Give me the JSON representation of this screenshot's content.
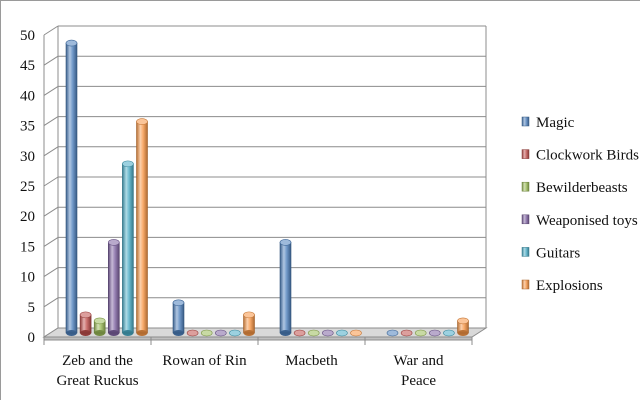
{
  "chart_data": {
    "type": "bar",
    "style": "3d-cylinder",
    "title": "",
    "xlabel": "",
    "ylabel": "",
    "ylim": [
      0,
      50
    ],
    "yticks": [
      0,
      5,
      10,
      15,
      20,
      25,
      30,
      35,
      40,
      45,
      50
    ],
    "grid": true,
    "legend_position": "right",
    "categories": [
      [
        "Zeb and the",
        "Great Ruckus"
      ],
      [
        "Rowan of Rin"
      ],
      [
        "Macbeth"
      ],
      [
        "War and",
        "Peace"
      ]
    ],
    "series": [
      {
        "name": "Magic",
        "color": "#4f81bd",
        "values": [
          48,
          5,
          15,
          0
        ]
      },
      {
        "name": "Clockwork Birds",
        "color": "#c0504d",
        "values": [
          3,
          0,
          0,
          0
        ]
      },
      {
        "name": "Bewilderbeasts",
        "color": "#9bbb59",
        "values": [
          2,
          0,
          0,
          0
        ]
      },
      {
        "name": "Weaponised toys",
        "color": "#8064a2",
        "values": [
          15,
          0,
          0,
          0
        ]
      },
      {
        "name": "Guitars",
        "color": "#4bacc6",
        "values": [
          28,
          0,
          0,
          0
        ]
      },
      {
        "name": "Explosions",
        "color": "#f79646",
        "values": [
          35,
          3,
          0,
          2
        ]
      }
    ]
  }
}
